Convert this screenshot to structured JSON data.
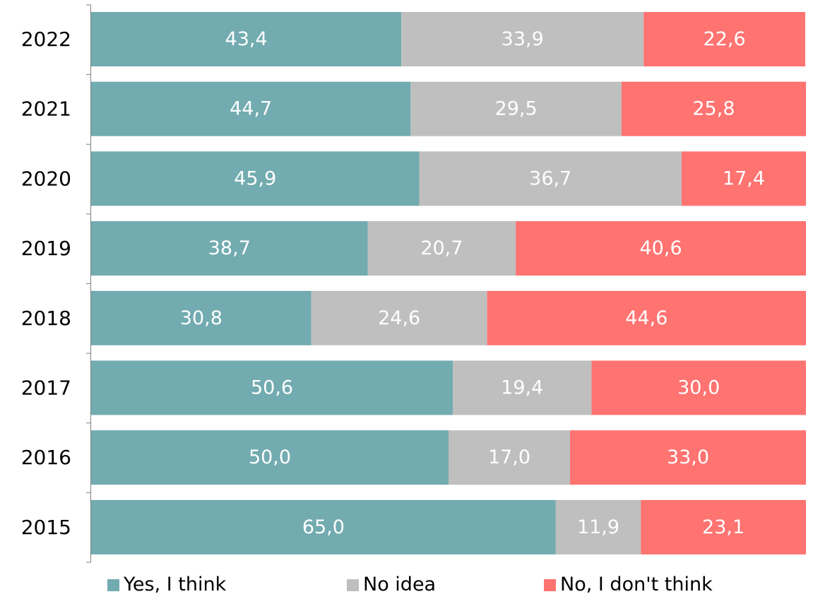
{
  "chart_data": {
    "type": "bar",
    "orientation": "horizontal",
    "stacked": true,
    "categories": [
      "2022",
      "2021",
      "2020",
      "2019",
      "2018",
      "2017",
      "2016",
      "2015"
    ],
    "series": [
      {
        "name": "Yes, I think",
        "color": "#72abb0",
        "values": [
          43.4,
          44.7,
          45.9,
          38.7,
          30.8,
          50.6,
          50.0,
          65.0
        ],
        "labels": [
          "43,4",
          "44,7",
          "45,9",
          "38,7",
          "30,8",
          "50,6",
          "50,0",
          "65,0"
        ]
      },
      {
        "name": "No idea",
        "color": "#bfbfbf",
        "values": [
          33.9,
          29.5,
          36.7,
          20.7,
          24.6,
          19.4,
          17.0,
          11.9
        ],
        "labels": [
          "33,9",
          "29,5",
          "36,7",
          "20,7",
          "24,6",
          "19,4",
          "17,0",
          "11,9"
        ]
      },
      {
        "name": "No, I don't think",
        "color": "#ff7371",
        "values": [
          22.6,
          25.8,
          17.4,
          40.6,
          44.6,
          30.0,
          33.0,
          23.1
        ],
        "labels": [
          "22,6",
          "25,8",
          "17,4",
          "40,6",
          "44,6",
          "30,0",
          "33,0",
          "23,1"
        ]
      }
    ],
    "xlim": [
      0,
      100
    ],
    "title": "",
    "xlabel": "",
    "ylabel": "",
    "grid": false,
    "legend": "bottom"
  },
  "legend": {
    "items": [
      {
        "label": "Yes, I think",
        "color": "#72abb0"
      },
      {
        "label": "No idea",
        "color": "#bfbfbf"
      },
      {
        "label": "No, I don't think",
        "color": "#ff7371"
      }
    ]
  }
}
